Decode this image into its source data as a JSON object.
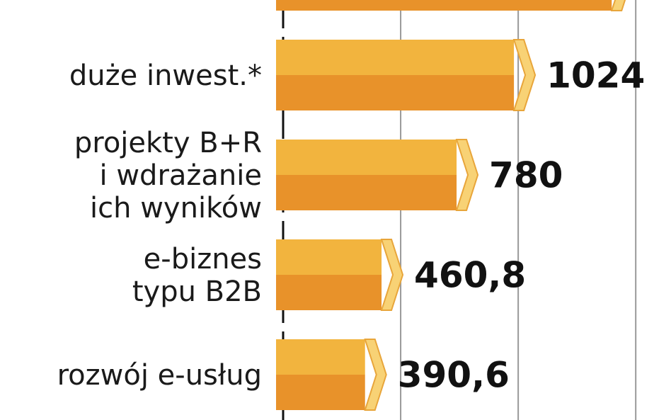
{
  "chart_data": {
    "type": "bar",
    "orientation": "horizontal",
    "categories": [
      null,
      "duże inwest.*",
      "projekty B+R\ni wdrażanie\nich wyników",
      "e-biznes\ntypu B2B",
      "rozwój e-usług"
    ],
    "values": [
      1440,
      1024,
      780,
      460.8,
      390.6
    ],
    "value_labels": [
      null,
      "1024",
      "780",
      "460,8",
      "390,6"
    ],
    "color": "#f0a030",
    "xlim": [
      0,
      1650
    ],
    "xticks": [
      0,
      500,
      1000,
      1500
    ],
    "grid": true
  }
}
